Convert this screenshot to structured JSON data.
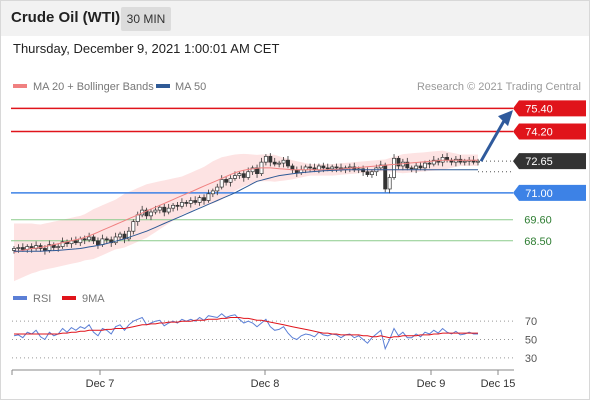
{
  "header": {
    "title": "Crude Oil (WTI)",
    "timeframe": "30 MIN"
  },
  "timestamp": "Thursday, December 9, 2021 1:00:01 AM CET",
  "credit": "Research © 2021 Trading Central",
  "colors": {
    "resistance": "#e0141b",
    "support_strong": "#3d82e6",
    "support_weak": "#8ccb8c",
    "ma50": "#2f5a96",
    "ma20": "#f08080",
    "bollinger_fill": "#fde3e3",
    "price_box": "#333333",
    "rsi": "#5b7fd6",
    "rsi_ma": "#e0141b",
    "arrow": "#2f5a9c"
  },
  "chart_data": [
    {
      "type": "candlestick",
      "legend": [
        {
          "name": "MA 20 + Bollinger Bands",
          "color": "#f08080"
        },
        {
          "name": "MA 50",
          "color": "#2f5a96"
        }
      ],
      "x_ticks": [
        "Dec 7",
        "Dec 8",
        "Dec 9",
        "Dec 15"
      ],
      "last_price": "72.65",
      "levels": [
        {
          "value": 75.4,
          "label": "75.40",
          "kind": "resistance"
        },
        {
          "value": 74.2,
          "label": "74.20",
          "kind": "resistance"
        },
        {
          "value": 71.0,
          "label": "71.00",
          "kind": "support_strong"
        },
        {
          "value": 69.6,
          "label": "69.60",
          "kind": "support_weak"
        },
        {
          "value": 68.5,
          "label": "68.50",
          "kind": "support_weak"
        }
      ],
      "ylim": [
        66.3,
        76.1
      ],
      "close": [
        68.1,
        68.15,
        68.05,
        68.2,
        68.1,
        68.25,
        68.1,
        68.0,
        68.3,
        68.15,
        68.2,
        68.45,
        68.35,
        68.5,
        68.4,
        68.6,
        68.55,
        68.7,
        68.5,
        68.3,
        68.6,
        68.55,
        68.4,
        68.7,
        68.85,
        68.6,
        69.0,
        69.5,
        69.85,
        70.1,
        69.8,
        70.0,
        70.1,
        70.25,
        70.0,
        70.2,
        70.35,
        70.3,
        70.5,
        70.45,
        70.6,
        70.5,
        70.75,
        70.6,
        70.95,
        71.1,
        71.3,
        71.7,
        71.55,
        71.75,
        71.9,
        72.0,
        71.8,
        72.1,
        72.3,
        72.0,
        72.6,
        72.9,
        72.6,
        72.5,
        72.55,
        72.7,
        72.4,
        72.2,
        72.05,
        72.2,
        72.35,
        72.3,
        72.2,
        72.4,
        72.3,
        72.25,
        72.35,
        72.3,
        72.2,
        72.3,
        72.35,
        72.2,
        72.25,
        72.1,
        71.95,
        72.1,
        72.3,
        72.45,
        71.2,
        71.8,
        72.8,
        72.4,
        72.6,
        72.3,
        72.25,
        72.4,
        72.3,
        72.55,
        72.5,
        72.7,
        72.6,
        72.85,
        72.7,
        72.6,
        72.75,
        72.6,
        72.65,
        72.7,
        72.6,
        72.65
      ],
      "ma20": [
        67.9,
        67.95,
        68.0,
        68.05,
        68.1,
        68.12,
        68.15,
        68.2,
        68.25,
        68.3,
        68.35,
        68.4,
        68.45,
        68.5,
        68.55,
        68.6,
        68.68,
        68.76,
        68.85,
        68.95,
        69.05,
        69.15,
        69.25,
        69.35,
        69.45,
        69.55,
        69.65,
        69.75,
        69.85,
        69.95,
        70.05,
        70.15,
        70.25,
        70.35,
        70.45,
        70.55,
        70.65,
        70.75,
        70.85,
        70.95,
        71.05,
        71.15,
        71.25,
        71.35,
        71.45,
        71.55,
        71.65,
        71.75,
        71.85,
        71.95,
        72.05,
        72.12,
        72.18,
        72.22,
        72.25,
        72.28,
        72.3,
        72.3,
        72.3,
        72.28,
        72.26,
        72.24,
        72.22,
        72.2,
        72.2,
        72.2,
        72.2,
        72.2,
        72.2,
        72.2,
        72.2,
        72.2,
        72.2,
        72.22,
        72.24,
        72.26,
        72.28,
        72.3,
        72.32,
        72.34,
        72.36,
        72.38,
        72.4,
        72.42,
        72.44,
        72.46,
        72.48,
        72.5,
        72.52,
        72.54,
        72.56,
        72.58,
        72.6,
        72.62,
        72.64,
        72.66,
        72.68,
        72.7,
        72.7,
        72.7,
        72.7,
        72.7,
        72.7,
        72.7,
        72.7,
        72.7
      ],
      "ma50": [
        67.95,
        67.95,
        67.95,
        67.95,
        67.95,
        67.95,
        67.96,
        67.97,
        67.98,
        67.99,
        68.0,
        68.02,
        68.04,
        68.06,
        68.08,
        68.1,
        68.14,
        68.18,
        68.22,
        68.26,
        68.3,
        68.36,
        68.42,
        68.48,
        68.54,
        68.6,
        68.68,
        68.76,
        68.84,
        68.92,
        69.0,
        69.1,
        69.2,
        69.3,
        69.4,
        69.5,
        69.6,
        69.7,
        69.8,
        69.9,
        70.0,
        70.1,
        70.2,
        70.3,
        70.4,
        70.5,
        70.6,
        70.7,
        70.8,
        70.9,
        71.0,
        71.12,
        71.24,
        71.36,
        71.48,
        71.6,
        71.66,
        71.72,
        71.78,
        71.84,
        71.9,
        71.93,
        71.96,
        71.99,
        72.02,
        72.05,
        72.07,
        72.09,
        72.11,
        72.13,
        72.15,
        72.16,
        72.17,
        72.18,
        72.19,
        72.2,
        72.2,
        72.2,
        72.2,
        72.2,
        72.2,
        72.2,
        72.2,
        72.2,
        72.2,
        72.2,
        72.2,
        72.2,
        72.2,
        72.2,
        72.2,
        72.2,
        72.2,
        72.2,
        72.2,
        72.2,
        72.2,
        72.2,
        72.2,
        72.2,
        72.2,
        72.2,
        72.2,
        72.2,
        72.2,
        72.2
      ],
      "bb_width": [
        1.5,
        1.45,
        1.4,
        1.35,
        1.3,
        1.25,
        1.2,
        1.2,
        1.2,
        1.2,
        1.2,
        1.2,
        1.2,
        1.2,
        1.2,
        1.2,
        1.2,
        1.25,
        1.3,
        1.3,
        1.3,
        1.3,
        1.3,
        1.3,
        1.35,
        1.4,
        1.4,
        1.4,
        1.4,
        1.4,
        1.4,
        1.35,
        1.3,
        1.25,
        1.2,
        1.15,
        1.1,
        1.05,
        1.0,
        1.0,
        1.0,
        1.0,
        1.0,
        1.0,
        1.05,
        1.1,
        1.1,
        1.1,
        1.05,
        1.0,
        0.95,
        0.9,
        0.85,
        0.8,
        0.75,
        0.7,
        0.7,
        0.7,
        0.7,
        0.7,
        0.65,
        0.6,
        0.55,
        0.5,
        0.45,
        0.4,
        0.35,
        0.3,
        0.3,
        0.3,
        0.3,
        0.3,
        0.3,
        0.3,
        0.3,
        0.3,
        0.3,
        0.3,
        0.3,
        0.3,
        0.3,
        0.3,
        0.3,
        0.3,
        0.3,
        0.35,
        0.4,
        0.45,
        0.5,
        0.5,
        0.5,
        0.5,
        0.5,
        0.5,
        0.5,
        0.5,
        0.5,
        0.5,
        0.45,
        0.4,
        0.35,
        0.3,
        0.3,
        0.3,
        0.3,
        0.3
      ]
    },
    {
      "type": "line",
      "legend": [
        {
          "name": "RSI",
          "color": "#5b7fd6"
        },
        {
          "name": "9MA",
          "color": "#e0141b"
        }
      ],
      "ylim": [
        20,
        80
      ],
      "y_ticks": [
        70,
        50,
        30
      ],
      "rsi": [
        54,
        55,
        52,
        58,
        56,
        60,
        53,
        50,
        58,
        54,
        56,
        62,
        58,
        63,
        60,
        64,
        62,
        66,
        58,
        54,
        62,
        60,
        56,
        64,
        66,
        60,
        66,
        70,
        72,
        74,
        66,
        68,
        70,
        71,
        65,
        68,
        70,
        68,
        72,
        70,
        72,
        70,
        74,
        71,
        76,
        75,
        74,
        78,
        74,
        76,
        77,
        72,
        68,
        70,
        68,
        64,
        68,
        72,
        64,
        60,
        61,
        64,
        57,
        52,
        50,
        54,
        56,
        55,
        53,
        58,
        55,
        54,
        56,
        55,
        52,
        55,
        56,
        52,
        54,
        50,
        46,
        52,
        56,
        60,
        40,
        50,
        62,
        54,
        58,
        52,
        52,
        56,
        53,
        58,
        56,
        60,
        57,
        62,
        58,
        56,
        59,
        55,
        56,
        58,
        56,
        56
      ],
      "rsi_ma": [
        56,
        56,
        56,
        56,
        56,
        56,
        56,
        56,
        56,
        56,
        56,
        57,
        57,
        58,
        58,
        59,
        59,
        60,
        60,
        60,
        60,
        61,
        61,
        62,
        62,
        62,
        63,
        64,
        65,
        66,
        66,
        67,
        67,
        68,
        68,
        69,
        69,
        69,
        70,
        70,
        70,
        71,
        71,
        71,
        72,
        72,
        72,
        73,
        73,
        74,
        74,
        74,
        73,
        73,
        72,
        71,
        71,
        70,
        69,
        68,
        67,
        66,
        65,
        64,
        63,
        62,
        61,
        60,
        59,
        58,
        57,
        57,
        56,
        56,
        55,
        55,
        55,
        55,
        55,
        54,
        54,
        53,
        53,
        54,
        53,
        52,
        53,
        53,
        54,
        54,
        54,
        54,
        55,
        55,
        55,
        56,
        56,
        57,
        57,
        57,
        57,
        57,
        57,
        57,
        57,
        57
      ]
    }
  ]
}
